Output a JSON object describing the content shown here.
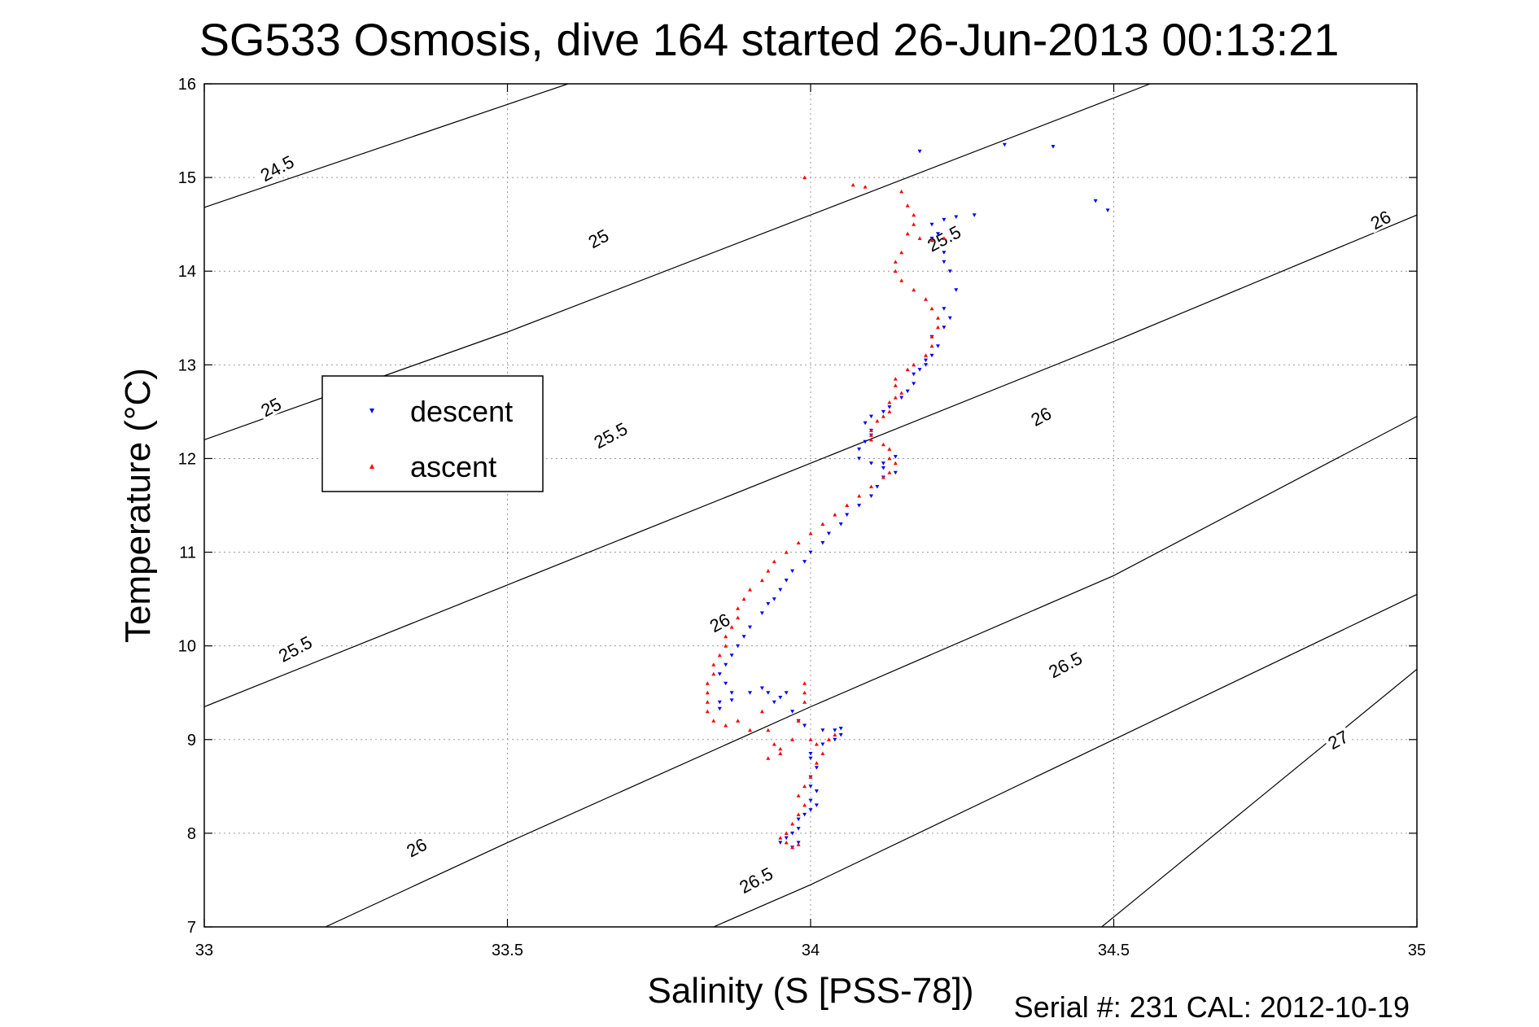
{
  "chart_data": {
    "type": "scatter",
    "title": "SG533 Osmosis, dive 164 started 26-Jun-2013 00:13:21",
    "xlabel": "Salinity (S [PSS-78])",
    "ylabel": "Temperature (°C)",
    "xlim": [
      33,
      35
    ],
    "ylim": [
      7,
      16
    ],
    "x_ticks": [
      33,
      33.5,
      34,
      34.5,
      35
    ],
    "x_tick_labels": [
      "33",
      "33.5",
      "34",
      "34.5",
      "35"
    ],
    "y_ticks": [
      7,
      8,
      9,
      10,
      11,
      12,
      13,
      14,
      15,
      16
    ],
    "y_tick_labels": [
      "7",
      "8",
      "9",
      "10",
      "11",
      "12",
      "13",
      "14",
      "15",
      "16"
    ],
    "grid": true,
    "legend_position": "left",
    "density_contours": [
      {
        "value": "24.5",
        "points": [
          [
            33,
            14.68
          ],
          [
            33.6,
            16.0
          ]
        ]
      },
      {
        "value": "25",
        "points": [
          [
            33,
            12.2
          ],
          [
            33.5,
            13.35
          ],
          [
            34,
            14.6
          ],
          [
            34.5,
            15.85
          ],
          [
            34.56,
            16.0
          ]
        ]
      },
      {
        "value": "25.5",
        "points": [
          [
            33,
            9.35
          ],
          [
            33.5,
            10.65
          ],
          [
            34,
            11.95
          ],
          [
            34.5,
            13.25
          ],
          [
            35,
            14.6
          ]
        ]
      },
      {
        "value": "26",
        "points": [
          [
            33.2,
            7.0
          ],
          [
            33.5,
            7.9
          ],
          [
            34,
            9.35
          ],
          [
            34.5,
            10.75
          ],
          [
            35,
            12.45
          ]
        ]
      },
      {
        "value": "26.5",
        "points": [
          [
            33.84,
            7.0
          ],
          [
            34,
            7.45
          ],
          [
            34.5,
            9.0
          ],
          [
            35,
            10.55
          ]
        ]
      },
      {
        "value": "27",
        "points": [
          [
            34.48,
            7.0
          ],
          [
            35,
            9.75
          ]
        ]
      }
    ],
    "contour_labels": [
      {
        "text": "24.5",
        "x": 33.12,
        "y": 15.1
      },
      {
        "text": "25",
        "x": 33.65,
        "y": 14.35
      },
      {
        "text": "25",
        "x": 33.11,
        "y": 12.55
      },
      {
        "text": "25.5",
        "x": 34.22,
        "y": 14.35
      },
      {
        "text": "25.5",
        "x": 33.67,
        "y": 12.25
      },
      {
        "text": "25.5",
        "x": 33.15,
        "y": 9.97
      },
      {
        "text": "26",
        "x": 34.94,
        "y": 14.55
      },
      {
        "text": "26",
        "x": 34.38,
        "y": 12.45
      },
      {
        "text": "26",
        "x": 33.85,
        "y": 10.25
      },
      {
        "text": "26",
        "x": 33.35,
        "y": 7.85
      },
      {
        "text": "26.5",
        "x": 34.42,
        "y": 9.8
      },
      {
        "text": "26.5",
        "x": 33.91,
        "y": 7.5
      },
      {
        "text": "27",
        "x": 34.87,
        "y": 9.0
      }
    ],
    "series": [
      {
        "name": "descent",
        "color": "#0000ff",
        "marker": "triangle-down",
        "points": [
          [
            34.18,
            15.28
          ],
          [
            34.32,
            15.35
          ],
          [
            34.4,
            15.33
          ],
          [
            34.47,
            14.75
          ],
          [
            34.49,
            14.65
          ],
          [
            34.27,
            14.6
          ],
          [
            34.2,
            14.5
          ],
          [
            34.22,
            14.55
          ],
          [
            34.24,
            14.58
          ],
          [
            34.21,
            14.4
          ],
          [
            34.2,
            14.35
          ],
          [
            34.22,
            14.2
          ],
          [
            34.22,
            14.1
          ],
          [
            34.23,
            14.0
          ],
          [
            34.24,
            13.8
          ],
          [
            34.22,
            13.6
          ],
          [
            34.23,
            13.5
          ],
          [
            34.22,
            13.4
          ],
          [
            34.2,
            13.3
          ],
          [
            34.21,
            13.2
          ],
          [
            34.2,
            13.1
          ],
          [
            34.19,
            13.05
          ],
          [
            34.19,
            13.0
          ],
          [
            34.18,
            12.95
          ],
          [
            34.17,
            12.9
          ],
          [
            34.17,
            12.8
          ],
          [
            34.16,
            12.72
          ],
          [
            34.15,
            12.65
          ],
          [
            34.13,
            12.55
          ],
          [
            34.12,
            12.5
          ],
          [
            34.1,
            12.45
          ],
          [
            34.09,
            12.38
          ],
          [
            34.1,
            12.3
          ],
          [
            34.1,
            12.25
          ],
          [
            34.09,
            12.18
          ],
          [
            34.08,
            12.1
          ],
          [
            34.08,
            12.0
          ],
          [
            34.1,
            11.95
          ],
          [
            34.12,
            11.9
          ],
          [
            34.14,
            11.85
          ],
          [
            34.12,
            11.95
          ],
          [
            34.14,
            12.02
          ],
          [
            34.12,
            11.8
          ],
          [
            34.11,
            11.7
          ],
          [
            34.1,
            11.6
          ],
          [
            34.08,
            11.5
          ],
          [
            34.06,
            11.4
          ],
          [
            34.05,
            11.3
          ],
          [
            34.03,
            11.2
          ],
          [
            34.02,
            11.1
          ],
          [
            34.0,
            11.0
          ],
          [
            33.99,
            10.9
          ],
          [
            33.97,
            10.8
          ],
          [
            33.96,
            10.7
          ],
          [
            33.95,
            10.6
          ],
          [
            33.94,
            10.5
          ],
          [
            33.93,
            10.45
          ],
          [
            33.92,
            10.35
          ],
          [
            33.9,
            10.2
          ],
          [
            33.89,
            10.1
          ],
          [
            33.88,
            10.0
          ],
          [
            33.87,
            9.9
          ],
          [
            33.86,
            9.8
          ],
          [
            33.85,
            9.7
          ],
          [
            33.86,
            9.6
          ],
          [
            33.87,
            9.5
          ],
          [
            33.85,
            9.4
          ],
          [
            33.85,
            9.33
          ],
          [
            33.87,
            9.42
          ],
          [
            33.9,
            9.5
          ],
          [
            33.93,
            9.5
          ],
          [
            33.96,
            9.5
          ],
          [
            33.95,
            9.45
          ],
          [
            33.92,
            9.55
          ],
          [
            33.94,
            9.4
          ],
          [
            33.97,
            9.3
          ],
          [
            33.98,
            9.2
          ],
          [
            33.99,
            9.15
          ],
          [
            34.02,
            9.1
          ],
          [
            34.04,
            9.1
          ],
          [
            34.05,
            9.12
          ],
          [
            34.05,
            9.05
          ],
          [
            34.04,
            9.0
          ],
          [
            34.02,
            8.95
          ],
          [
            34.0,
            8.85
          ],
          [
            34.0,
            8.8
          ],
          [
            34.01,
            8.7
          ],
          [
            34.0,
            8.6
          ],
          [
            34.0,
            8.5
          ],
          [
            34.01,
            8.45
          ],
          [
            34.0,
            8.35
          ],
          [
            34.01,
            8.3
          ],
          [
            34.0,
            8.25
          ],
          [
            33.99,
            8.2
          ],
          [
            33.98,
            8.15
          ],
          [
            33.98,
            8.05
          ],
          [
            33.97,
            8.0
          ],
          [
            33.96,
            7.95
          ],
          [
            33.95,
            7.9
          ],
          [
            33.97,
            7.85
          ],
          [
            33.98,
            7.9
          ]
        ]
      },
      {
        "name": "ascent",
        "color": "#ff0000",
        "marker": "triangle-up",
        "points": [
          [
            33.99,
            15.0
          ],
          [
            34.07,
            14.92
          ],
          [
            34.09,
            14.9
          ],
          [
            34.15,
            14.85
          ],
          [
            34.16,
            14.7
          ],
          [
            34.17,
            14.6
          ],
          [
            34.17,
            14.5
          ],
          [
            34.16,
            14.4
          ],
          [
            34.18,
            14.35
          ],
          [
            34.2,
            14.33
          ],
          [
            34.22,
            14.35
          ],
          [
            34.15,
            14.2
          ],
          [
            34.14,
            14.1
          ],
          [
            34.14,
            14.0
          ],
          [
            34.15,
            13.9
          ],
          [
            34.17,
            13.8
          ],
          [
            34.19,
            13.7
          ],
          [
            34.2,
            13.6
          ],
          [
            34.21,
            13.5
          ],
          [
            34.21,
            13.4
          ],
          [
            34.2,
            13.3
          ],
          [
            34.2,
            13.2
          ],
          [
            34.19,
            13.1
          ],
          [
            34.17,
            13.0
          ],
          [
            34.16,
            12.95
          ],
          [
            34.14,
            12.85
          ],
          [
            34.14,
            12.78
          ],
          [
            34.15,
            12.7
          ],
          [
            34.14,
            12.65
          ],
          [
            34.13,
            12.6
          ],
          [
            34.13,
            12.5
          ],
          [
            34.12,
            12.45
          ],
          [
            34.11,
            12.4
          ],
          [
            34.1,
            12.3
          ],
          [
            34.1,
            12.25
          ],
          [
            34.1,
            12.2
          ],
          [
            34.12,
            12.15
          ],
          [
            34.13,
            12.1
          ],
          [
            34.13,
            12.0
          ],
          [
            34.14,
            11.95
          ],
          [
            34.13,
            11.85
          ],
          [
            34.12,
            11.8
          ],
          [
            34.1,
            11.7
          ],
          [
            34.08,
            11.6
          ],
          [
            34.06,
            11.5
          ],
          [
            34.04,
            11.4
          ],
          [
            34.02,
            11.3
          ],
          [
            34.0,
            11.2
          ],
          [
            33.98,
            11.1
          ],
          [
            33.96,
            11.0
          ],
          [
            33.94,
            10.9
          ],
          [
            33.93,
            10.8
          ],
          [
            33.92,
            10.7
          ],
          [
            33.9,
            10.6
          ],
          [
            33.89,
            10.5
          ],
          [
            33.88,
            10.4
          ],
          [
            33.88,
            10.3
          ],
          [
            33.87,
            10.2
          ],
          [
            33.86,
            10.1
          ],
          [
            33.86,
            10.0
          ],
          [
            33.85,
            9.9
          ],
          [
            33.84,
            9.8
          ],
          [
            33.84,
            9.7
          ],
          [
            33.83,
            9.6
          ],
          [
            33.83,
            9.5
          ],
          [
            33.83,
            9.4
          ],
          [
            33.83,
            9.3
          ],
          [
            33.84,
            9.2
          ],
          [
            33.86,
            9.15
          ],
          [
            33.88,
            9.2
          ],
          [
            33.9,
            9.1
          ],
          [
            33.92,
            9.3
          ],
          [
            33.93,
            9.1
          ],
          [
            33.94,
            8.95
          ],
          [
            33.95,
            8.85
          ],
          [
            33.93,
            8.8
          ],
          [
            33.95,
            8.9
          ],
          [
            33.97,
            9.0
          ],
          [
            33.98,
            9.2
          ],
          [
            33.99,
            9.4
          ],
          [
            33.99,
            9.5
          ],
          [
            33.99,
            9.6
          ],
          [
            34.0,
            9.0
          ],
          [
            34.01,
            8.95
          ],
          [
            34.03,
            9.0
          ],
          [
            34.04,
            9.05
          ],
          [
            34.02,
            8.85
          ],
          [
            34.01,
            8.75
          ],
          [
            34.0,
            8.6
          ],
          [
            33.99,
            8.5
          ],
          [
            33.98,
            8.4
          ],
          [
            33.99,
            8.3
          ],
          [
            33.98,
            8.2
          ],
          [
            33.97,
            8.1
          ],
          [
            33.96,
            8.0
          ],
          [
            33.95,
            7.95
          ],
          [
            33.96,
            7.9
          ],
          [
            33.97,
            7.85
          ],
          [
            33.98,
            7.88
          ]
        ]
      }
    ]
  },
  "footer": {
    "serial": "Serial #: 231  CAL: 2012-10-19"
  }
}
